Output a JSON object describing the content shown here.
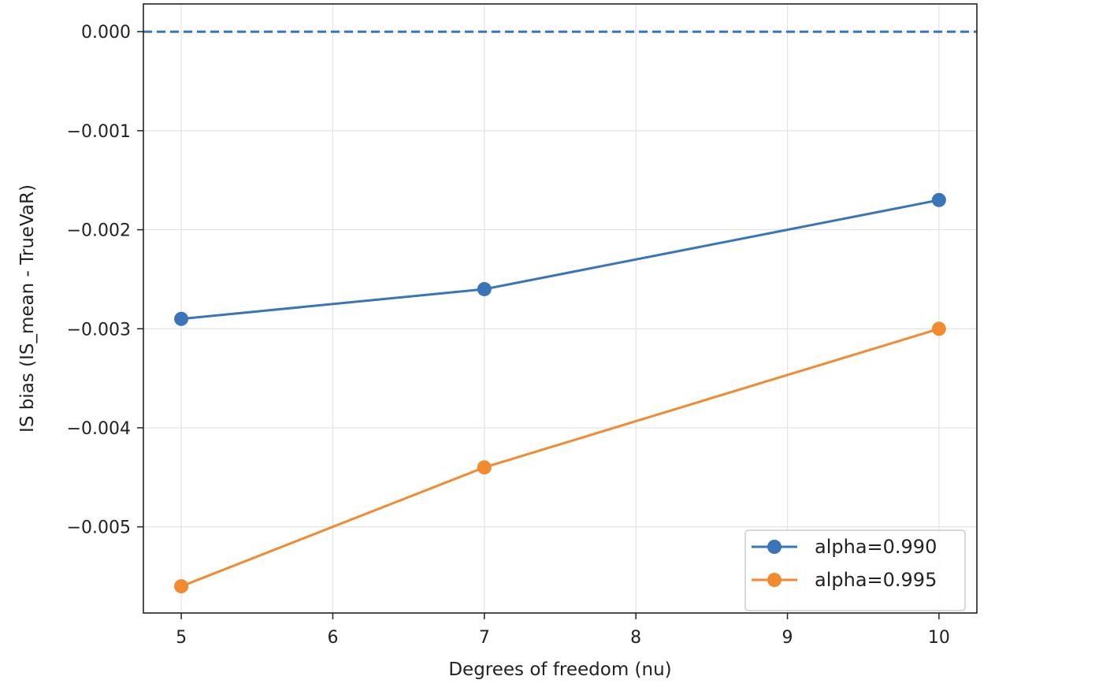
{
  "chart_data": {
    "type": "line",
    "title": "",
    "xlabel": "Degrees of freedom (nu)",
    "ylabel": "IS bias (IS_mean - TrueVaR)",
    "xlim": [
      4.75,
      10.25
    ],
    "ylim": [
      -0.00587,
      0.00028
    ],
    "xticks": [
      5,
      6,
      7,
      8,
      9,
      10
    ],
    "xtick_labels": [
      "5",
      "6",
      "7",
      "8",
      "9",
      "10"
    ],
    "yticks": [
      0.0,
      -0.001,
      -0.002,
      -0.003,
      -0.004,
      -0.005
    ],
    "ytick_labels": [
      "0.000",
      "−0.001",
      "−0.002",
      "−0.003",
      "−0.004",
      "−0.005"
    ],
    "grid": true,
    "legend_position": "lower-right",
    "reference_line": {
      "y": 0.0,
      "style": "dashed",
      "color": "#3a75b9"
    },
    "series": [
      {
        "name": "alpha=0.990",
        "color": "#3a75b9",
        "x": [
          5,
          7,
          10
        ],
        "y": [
          -0.0029,
          -0.0026,
          -0.0017
        ]
      },
      {
        "name": "alpha=0.995",
        "color": "#f28a30",
        "x": [
          5,
          7,
          10
        ],
        "y": [
          -0.0056,
          -0.0044,
          -0.003
        ]
      }
    ]
  }
}
